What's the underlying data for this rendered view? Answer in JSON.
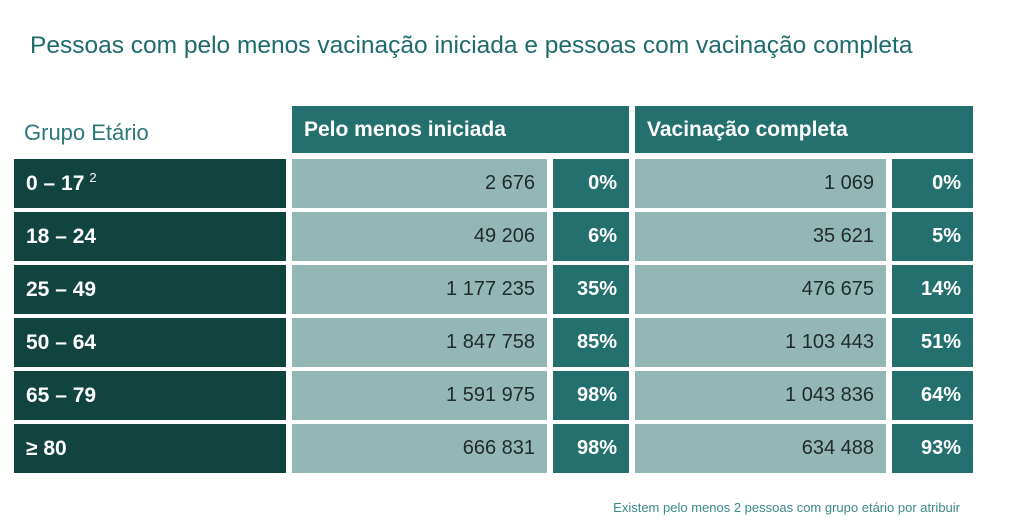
{
  "title": "Pessoas com pelo menos vacinação iniciada e pessoas com vacinação completa",
  "headers": {
    "group": "Grupo Etário",
    "initiated": "Pelo menos iniciada",
    "complete": "Vacinação completa"
  },
  "rows": [
    {
      "age": "0 – 17",
      "sup": "2",
      "init_count": "2 676",
      "init_pct": "0%",
      "comp_count": "1 069",
      "comp_pct": "0%"
    },
    {
      "age": "18 – 24",
      "init_count": "49 206",
      "init_pct": "6%",
      "comp_count": "35 621",
      "comp_pct": "5%"
    },
    {
      "age": "25 – 49",
      "init_count": "1 177 235",
      "init_pct": "35%",
      "comp_count": "476 675",
      "comp_pct": "14%"
    },
    {
      "age": "50 – 64",
      "init_count": "1 847 758",
      "init_pct": "85%",
      "comp_count": "1 103 443",
      "comp_pct": "51%"
    },
    {
      "age": "65 – 79",
      "init_count": "1 591 975",
      "init_pct": "98%",
      "comp_count": "1 043 836",
      "comp_pct": "64%"
    },
    {
      "age": "≥ 80",
      "init_count": "666 831",
      "init_pct": "98%",
      "comp_count": "634 488",
      "comp_pct": "93%"
    }
  ],
  "footnote": "Existem pelo menos 2 pessoas com grupo etário por atribuir",
  "colors": {
    "dark": "#11443f",
    "teal": "#23706f",
    "light": "#93b7b4",
    "title": "#1e6b6b"
  }
}
